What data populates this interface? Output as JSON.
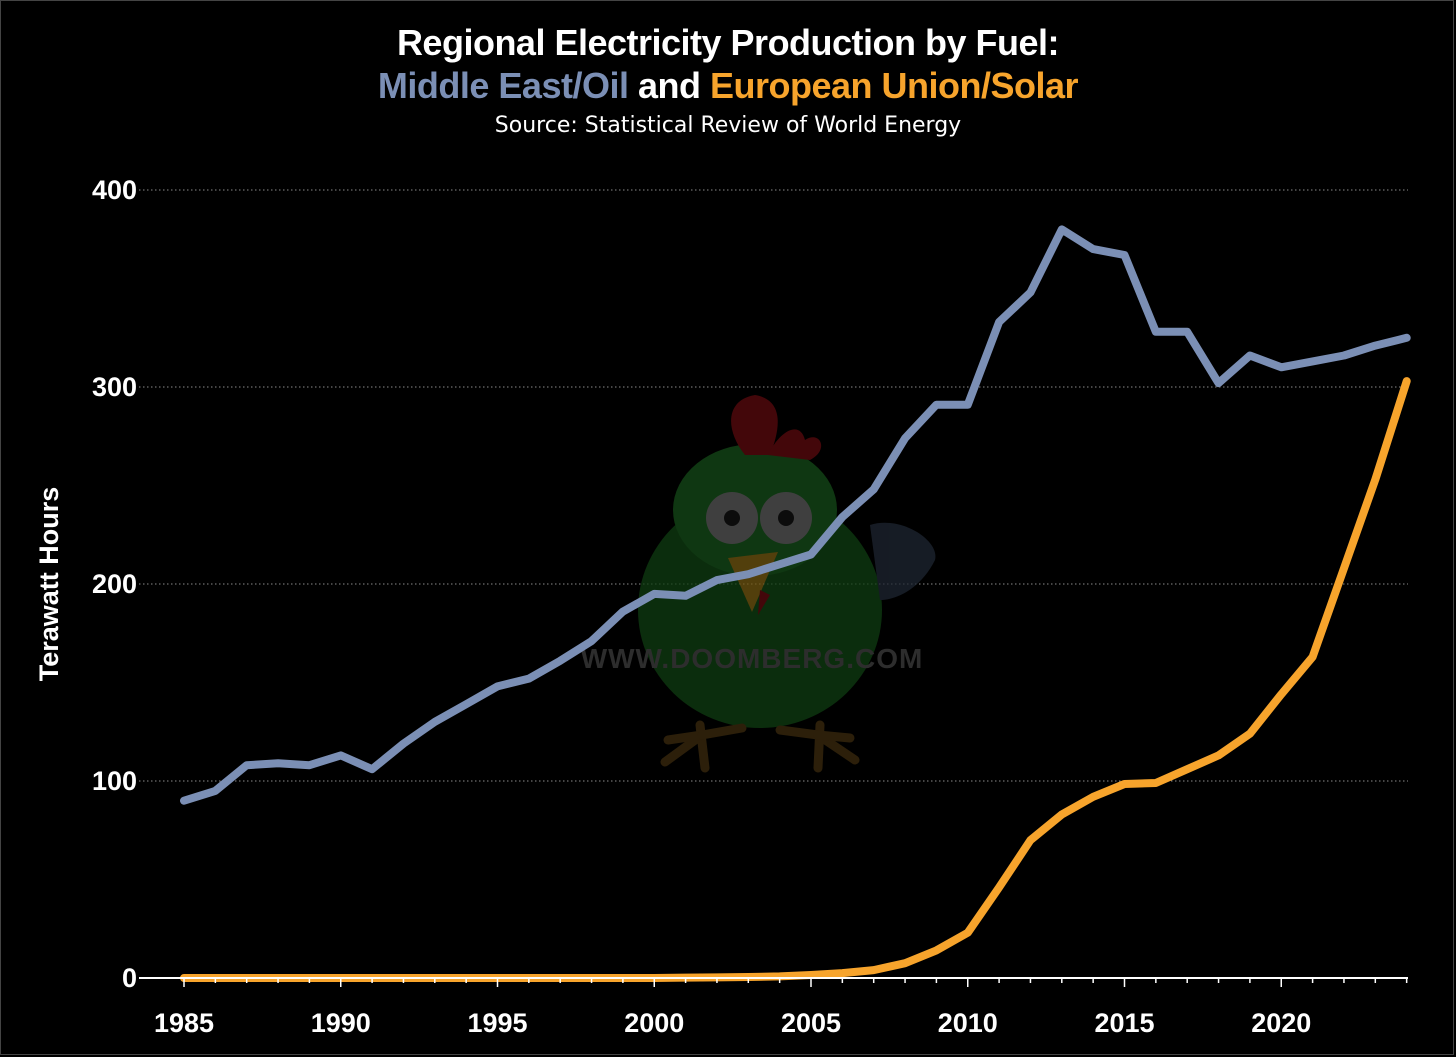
{
  "header": {
    "title_line1": "Regional Electricity Production by Fuel:",
    "series1_label": "Middle East/Oil",
    "and_word": "and",
    "series2_label": "European Union/Solar",
    "source": "Source: Statistical Review of World Energy"
  },
  "watermark": {
    "text": "WWW.DOOMBERG.COM"
  },
  "colors": {
    "background": "#000000",
    "series1": "#7b8fb5",
    "series2": "#f7a42c",
    "grid": "#8a8a8a",
    "text": "#ffffff"
  },
  "chart_data": {
    "type": "line",
    "title": "Regional Electricity Production by Fuel: Middle East/Oil and European Union/Solar",
    "subtitle": "Source: Statistical Review of World Energy",
    "xlabel": "",
    "ylabel": "Terawatt Hours",
    "xlim": [
      1985,
      2024
    ],
    "ylim": [
      0,
      400
    ],
    "xticks": [
      1985,
      1990,
      1995,
      2000,
      2005,
      2010,
      2015,
      2020
    ],
    "yticks": [
      0,
      100,
      200,
      300,
      400
    ],
    "grid": "horizontal dotted",
    "x": [
      1985,
      1986,
      1987,
      1988,
      1989,
      1990,
      1991,
      1992,
      1993,
      1994,
      1995,
      1996,
      1997,
      1998,
      1999,
      2000,
      2001,
      2002,
      2003,
      2004,
      2005,
      2006,
      2007,
      2008,
      2009,
      2010,
      2011,
      2012,
      2013,
      2014,
      2015,
      2016,
      2017,
      2018,
      2019,
      2020,
      2021,
      2022,
      2023,
      2024
    ],
    "series": [
      {
        "name": "Middle East/Oil",
        "color": "#7b8fb5",
        "values": [
          90,
          95,
          108,
          109,
          108,
          113,
          106,
          119,
          130,
          139,
          148,
          152,
          161,
          171,
          186,
          195,
          194,
          202,
          205,
          210,
          215,
          234,
          248,
          274,
          291,
          291,
          333,
          348,
          380,
          370,
          367,
          328,
          328,
          302,
          316,
          310,
          313,
          316,
          321,
          325
        ]
      },
      {
        "name": "European Union/Solar",
        "color": "#f7a42c",
        "values": [
          0,
          0,
          0,
          0,
          0,
          0,
          0,
          0,
          0,
          0,
          0,
          0,
          0,
          0,
          0,
          0,
          0.2,
          0.3,
          0.5,
          0.8,
          1.5,
          2.5,
          4,
          7.5,
          14,
          23,
          46,
          70,
          83,
          92,
          98.5,
          99,
          106,
          113,
          124,
          144,
          163,
          208,
          253,
          303
        ]
      }
    ]
  }
}
